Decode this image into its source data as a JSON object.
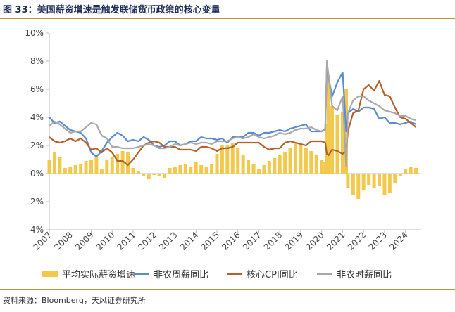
{
  "header": {
    "title": "图 33：美国薪资增速是触发联储货币政策的核心变量"
  },
  "footer": {
    "source": "资料来源：Bloomberg，天风证券研究所"
  },
  "colors": {
    "bar": "#f2c94c",
    "nonfarm_weekly": "#5b8bd0",
    "core_cpi": "#b5612a",
    "nonfarm_hourly": "#a9a9a9",
    "axis": "#bfbfbf",
    "tick_text": "#444444",
    "accent_rule": "#c8913a"
  },
  "chart_data": {
    "type": "bar",
    "ylim": [
      -4,
      10
    ],
    "yticks": [
      -4,
      -2,
      0,
      2,
      4,
      6,
      8,
      10
    ],
    "ytick_labels": [
      "-4%",
      "-2%",
      "0%",
      "2%",
      "4%",
      "6%",
      "8%",
      "10%"
    ],
    "xlim": [
      2007,
      2024.75
    ],
    "xticks": [
      2007,
      2008,
      2009,
      2010,
      2011,
      2012,
      2013,
      2014,
      2015,
      2016,
      2017,
      2018,
      2019,
      2020,
      2021,
      2022,
      2023,
      2024
    ],
    "xtick_labels": [
      "2007",
      "2008",
      "2009",
      "2010",
      "2011",
      "2012",
      "2013",
      "2014",
      "2015",
      "2016",
      "2017",
      "2018",
      "2019",
      "2020",
      "2021",
      "2022",
      "2023",
      "2024"
    ],
    "grid": false,
    "legend_position": "bottom",
    "series": [
      {
        "name": "平均实际薪资增速",
        "type": "bar",
        "color": "#f2c94c",
        "x": [
          2007.0,
          2007.25,
          2007.5,
          2007.75,
          2008.0,
          2008.25,
          2008.5,
          2008.75,
          2009.0,
          2009.25,
          2009.5,
          2009.75,
          2010.0,
          2010.25,
          2010.5,
          2010.75,
          2011.0,
          2011.25,
          2011.5,
          2011.75,
          2012.0,
          2012.25,
          2012.5,
          2012.75,
          2013.0,
          2013.25,
          2013.5,
          2013.75,
          2014.0,
          2014.25,
          2014.5,
          2014.75,
          2015.0,
          2015.25,
          2015.5,
          2015.75,
          2016.0,
          2016.25,
          2016.5,
          2016.75,
          2017.0,
          2017.25,
          2017.5,
          2017.75,
          2018.0,
          2018.25,
          2018.5,
          2018.75,
          2019.0,
          2019.25,
          2019.5,
          2019.75,
          2020.0,
          2020.17,
          2020.25,
          2020.33,
          2020.5,
          2020.75,
          2021.0,
          2021.17,
          2021.25,
          2021.5,
          2021.75,
          2022.0,
          2022.25,
          2022.5,
          2022.75,
          2023.0,
          2023.25,
          2023.5,
          2023.75,
          2024.0,
          2024.25,
          2024.5
        ],
        "values": [
          1.0,
          1.5,
          1.2,
          0.4,
          0.5,
          0.6,
          0.7,
          0.9,
          1.0,
          1.2,
          0.3,
          1.0,
          1.2,
          1.4,
          1.6,
          1.5,
          0.4,
          0.2,
          -0.2,
          -0.4,
          -0.1,
          -0.2,
          -0.3,
          0.4,
          0.5,
          0.6,
          0.7,
          0.5,
          0.8,
          0.6,
          0.5,
          0.7,
          1.4,
          2.0,
          2.0,
          2.2,
          1.8,
          1.3,
          1.0,
          0.7,
          0.3,
          0.6,
          0.9,
          1.1,
          1.3,
          1.5,
          1.8,
          2.2,
          2.0,
          1.8,
          1.6,
          1.3,
          1.0,
          0.8,
          3.5,
          7.0,
          4.8,
          4.2,
          4.4,
          6.0,
          -1.0,
          -1.5,
          -1.8,
          -1.2,
          -0.8,
          -1.0,
          -0.9,
          -1.5,
          -1.4,
          -0.7,
          -0.2,
          0.3,
          0.5,
          0.4
        ]
      },
      {
        "name": "非农周薪同比",
        "type": "line",
        "color": "#5b8bd0",
        "x": [
          2007.0,
          2007.25,
          2007.5,
          2007.75,
          2008.0,
          2008.25,
          2008.5,
          2008.75,
          2009.0,
          2009.25,
          2009.5,
          2009.75,
          2010.0,
          2010.25,
          2010.5,
          2010.75,
          2011.0,
          2011.25,
          2011.5,
          2011.75,
          2012.0,
          2012.25,
          2012.5,
          2012.75,
          2013.0,
          2013.25,
          2013.5,
          2013.75,
          2014.0,
          2014.25,
          2014.5,
          2014.75,
          2015.0,
          2015.25,
          2015.5,
          2015.75,
          2016.0,
          2016.25,
          2016.5,
          2016.75,
          2017.0,
          2017.25,
          2017.5,
          2017.75,
          2018.0,
          2018.25,
          2018.5,
          2018.75,
          2019.0,
          2019.25,
          2019.5,
          2019.75,
          2020.0,
          2020.17,
          2020.25,
          2020.33,
          2020.5,
          2020.75,
          2021.0,
          2021.17,
          2021.25,
          2021.5,
          2021.75,
          2022.0,
          2022.25,
          2022.5,
          2022.75,
          2023.0,
          2023.25,
          2023.5,
          2023.75,
          2024.0,
          2024.25,
          2024.5
        ],
        "values": [
          4.0,
          3.6,
          3.7,
          3.4,
          3.1,
          3.0,
          2.9,
          2.5,
          1.5,
          1.2,
          1.6,
          2.2,
          2.6,
          2.9,
          2.7,
          2.3,
          2.4,
          2.3,
          2.6,
          2.4,
          2.0,
          1.9,
          2.0,
          2.3,
          2.3,
          2.0,
          2.1,
          2.3,
          2.3,
          2.6,
          2.5,
          2.5,
          2.4,
          2.5,
          2.2,
          2.6,
          2.6,
          2.6,
          2.9,
          2.9,
          2.7,
          2.9,
          2.9,
          3.0,
          3.1,
          3.0,
          3.2,
          3.3,
          3.4,
          3.5,
          3.0,
          3.0,
          3.0,
          3.2,
          7.5,
          6.8,
          5.5,
          6.5,
          7.2,
          3.0,
          4.3,
          4.6,
          4.4,
          4.7,
          4.7,
          4.6,
          3.9,
          4.0,
          3.6,
          3.6,
          3.5,
          3.6,
          3.7,
          3.5
        ]
      },
      {
        "name": "核心CPI同比",
        "type": "line",
        "color": "#b5612a",
        "x": [
          2007.0,
          2007.25,
          2007.5,
          2007.75,
          2008.0,
          2008.25,
          2008.5,
          2008.75,
          2009.0,
          2009.25,
          2009.5,
          2009.75,
          2010.0,
          2010.25,
          2010.5,
          2010.75,
          2011.0,
          2011.25,
          2011.5,
          2011.75,
          2012.0,
          2012.25,
          2012.5,
          2012.75,
          2013.0,
          2013.25,
          2013.5,
          2013.75,
          2014.0,
          2014.25,
          2014.5,
          2014.75,
          2015.0,
          2015.25,
          2015.5,
          2015.75,
          2016.0,
          2016.25,
          2016.5,
          2016.75,
          2017.0,
          2017.25,
          2017.5,
          2017.75,
          2018.0,
          2018.25,
          2018.5,
          2018.75,
          2019.0,
          2019.25,
          2019.5,
          2019.75,
          2020.0,
          2020.17,
          2020.25,
          2020.33,
          2020.5,
          2020.75,
          2021.0,
          2021.17,
          2021.25,
          2021.5,
          2021.75,
          2022.0,
          2022.25,
          2022.5,
          2022.75,
          2023.0,
          2023.25,
          2023.5,
          2023.75,
          2024.0,
          2024.25,
          2024.5
        ],
        "values": [
          2.6,
          2.3,
          2.2,
          2.3,
          2.5,
          2.3,
          2.5,
          2.2,
          1.7,
          1.8,
          1.5,
          1.8,
          1.5,
          0.9,
          0.9,
          0.6,
          1.0,
          1.5,
          2.0,
          2.2,
          2.3,
          2.2,
          1.9,
          1.9,
          1.9,
          1.7,
          1.7,
          1.7,
          1.6,
          1.9,
          1.9,
          1.8,
          1.6,
          1.8,
          1.8,
          1.9,
          2.2,
          2.2,
          2.2,
          2.2,
          2.2,
          1.9,
          1.7,
          1.8,
          1.8,
          2.2,
          2.3,
          2.2,
          2.1,
          2.0,
          2.3,
          2.3,
          2.3,
          2.2,
          1.4,
          1.3,
          1.7,
          1.6,
          1.4,
          1.6,
          3.0,
          4.3,
          4.5,
          6.0,
          6.3,
          5.9,
          6.6,
          5.6,
          5.5,
          4.7,
          4.0,
          3.9,
          3.6,
          3.3
        ]
      },
      {
        "name": "非农时薪同比",
        "type": "line",
        "color": "#a9a9a9",
        "x": [
          2007.0,
          2007.25,
          2007.5,
          2007.75,
          2008.0,
          2008.25,
          2008.5,
          2008.75,
          2009.0,
          2009.25,
          2009.5,
          2009.75,
          2010.0,
          2010.25,
          2010.5,
          2010.75,
          2011.0,
          2011.25,
          2011.5,
          2011.75,
          2012.0,
          2012.25,
          2012.5,
          2012.75,
          2013.0,
          2013.25,
          2013.5,
          2013.75,
          2014.0,
          2014.25,
          2014.5,
          2014.75,
          2015.0,
          2015.25,
          2015.5,
          2015.75,
          2016.0,
          2016.25,
          2016.5,
          2016.75,
          2017.0,
          2017.25,
          2017.5,
          2017.75,
          2018.0,
          2018.25,
          2018.5,
          2018.75,
          2019.0,
          2019.25,
          2019.5,
          2019.75,
          2020.0,
          2020.17,
          2020.25,
          2020.33,
          2020.5,
          2020.75,
          2021.0,
          2021.17,
          2021.25,
          2021.5,
          2021.75,
          2022.0,
          2022.25,
          2022.5,
          2022.75,
          2023.0,
          2023.25,
          2023.5,
          2023.75,
          2024.0,
          2024.25,
          2024.5
        ],
        "values": [
          3.4,
          3.7,
          3.5,
          3.2,
          2.9,
          3.0,
          3.0,
          3.3,
          3.6,
          3.5,
          2.7,
          2.5,
          1.9,
          1.9,
          1.8,
          1.8,
          1.8,
          1.9,
          2.0,
          2.1,
          2.0,
          1.8,
          1.8,
          1.9,
          2.1,
          2.0,
          2.1,
          2.2,
          2.1,
          2.2,
          2.2,
          2.1,
          2.3,
          2.3,
          2.3,
          2.5,
          2.6,
          2.5,
          2.6,
          2.8,
          2.6,
          2.5,
          2.6,
          2.7,
          2.9,
          2.8,
          2.9,
          3.1,
          3.2,
          3.2,
          3.3,
          3.1,
          3.0,
          3.1,
          8.0,
          7.0,
          4.8,
          4.5,
          5.5,
          0.5,
          4.3,
          5.2,
          5.5,
          5.5,
          5.2,
          5.0,
          4.8,
          4.5,
          4.4,
          4.3,
          4.1,
          4.1,
          3.9,
          3.8
        ]
      }
    ]
  }
}
